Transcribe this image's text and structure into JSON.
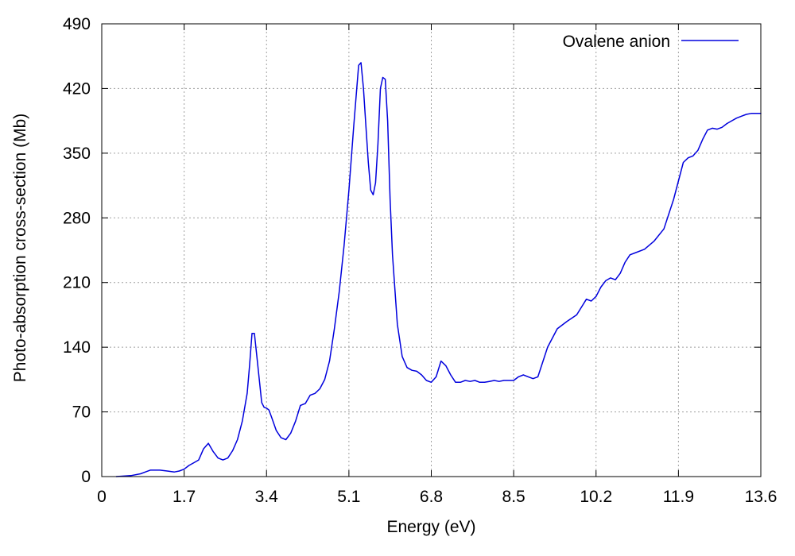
{
  "chart_data": {
    "type": "line",
    "title": "",
    "xlabel": "Energy (eV)",
    "ylabel": "Photo-absorption cross-section (Mb)",
    "xlim": [
      0,
      13.6
    ],
    "ylim": [
      0,
      490
    ],
    "x_ticks": [
      "0",
      "1.7",
      "3.4",
      "5.1",
      "6.8",
      "8.5",
      "10.2",
      "11.9",
      "13.6"
    ],
    "y_ticks": [
      "0",
      "70",
      "140",
      "210",
      "280",
      "350",
      "420",
      "490"
    ],
    "grid": true,
    "legend_position": "top-right",
    "series": [
      {
        "name": "Ovalene anion",
        "color": "#0000dd",
        "x": [
          0.3,
          0.6,
          0.8,
          0.9,
          1.0,
          1.1,
          1.2,
          1.35,
          1.5,
          1.6,
          1.7,
          1.8,
          1.9,
          2.0,
          2.05,
          2.1,
          2.2,
          2.3,
          2.4,
          2.5,
          2.6,
          2.7,
          2.8,
          2.9,
          3.0,
          3.05,
          3.1,
          3.15,
          3.2,
          3.3,
          3.35,
          3.4,
          3.45,
          3.5,
          3.6,
          3.7,
          3.8,
          3.9,
          4.0,
          4.1,
          4.2,
          4.3,
          4.4,
          4.5,
          4.6,
          4.7,
          4.8,
          4.9,
          5.0,
          5.1,
          5.2,
          5.3,
          5.35,
          5.4,
          5.45,
          5.5,
          5.55,
          5.6,
          5.65,
          5.7,
          5.75,
          5.8,
          5.85,
          5.9,
          5.95,
          6.0,
          6.1,
          6.2,
          6.3,
          6.4,
          6.5,
          6.6,
          6.7,
          6.8,
          6.9,
          7.0,
          7.1,
          7.2,
          7.3,
          7.4,
          7.5,
          7.6,
          7.7,
          7.8,
          7.9,
          8.0,
          8.1,
          8.2,
          8.3,
          8.4,
          8.5,
          8.6,
          8.7,
          8.8,
          8.9,
          9.0,
          9.2,
          9.4,
          9.6,
          9.8,
          10.0,
          10.1,
          10.2,
          10.3,
          10.4,
          10.5,
          10.6,
          10.7,
          10.8,
          10.9,
          11.0,
          11.2,
          11.4,
          11.6,
          11.8,
          12.0,
          12.1,
          12.2,
          12.3,
          12.4,
          12.5,
          12.6,
          12.7,
          12.8,
          12.9,
          13.0,
          13.1,
          13.2,
          13.3,
          13.4,
          13.6
        ],
        "y": [
          0,
          1,
          3,
          5,
          7,
          7,
          7,
          6,
          5,
          6,
          8,
          12,
          15,
          18,
          24,
          30,
          36,
          27,
          20,
          18,
          20,
          28,
          40,
          60,
          90,
          120,
          155,
          155,
          130,
          80,
          75,
          74,
          72,
          65,
          50,
          42,
          40,
          47,
          60,
          77,
          79,
          88,
          90,
          95,
          105,
          125,
          160,
          200,
          250,
          310,
          380,
          445,
          448,
          420,
          380,
          340,
          310,
          305,
          318,
          360,
          420,
          432,
          430,
          385,
          300,
          240,
          165,
          130,
          118,
          115,
          114,
          110,
          104,
          102,
          108,
          125,
          120,
          110,
          102,
          102,
          104,
          103,
          104,
          102,
          102,
          103,
          104,
          103,
          104,
          104,
          104,
          108,
          110,
          108,
          106,
          108,
          140,
          160,
          168,
          175,
          192,
          190,
          195,
          205,
          212,
          215,
          213,
          220,
          232,
          240,
          242,
          246,
          255,
          268,
          300,
          340,
          345,
          347,
          353,
          365,
          375,
          377,
          376,
          378,
          382,
          385,
          388,
          390,
          392,
          393,
          393
        ]
      }
    ]
  }
}
